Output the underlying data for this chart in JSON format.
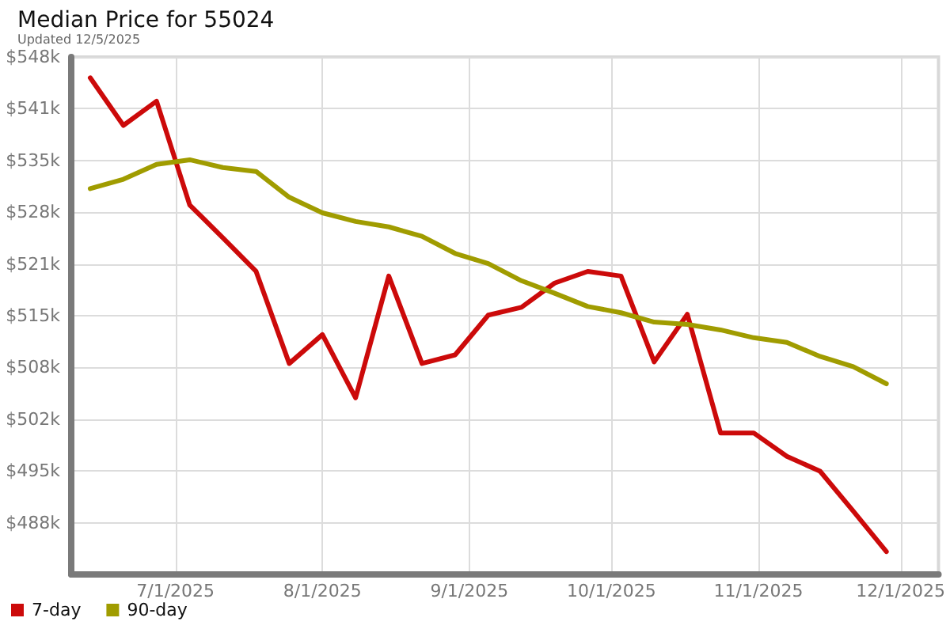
{
  "chart_data": {
    "type": "line",
    "title": "Median Price for 55024",
    "subtitle": "Updated 12/5/2025",
    "x": [
      "2025-06-13",
      "2025-06-20",
      "2025-06-27",
      "2025-07-04",
      "2025-07-11",
      "2025-07-18",
      "2025-07-25",
      "2025-08-01",
      "2025-08-08",
      "2025-08-15",
      "2025-08-22",
      "2025-08-29",
      "2025-09-05",
      "2025-09-12",
      "2025-09-19",
      "2025-09-26",
      "2025-10-03",
      "2025-10-10",
      "2025-10-17",
      "2025-10-24",
      "2025-10-31",
      "2025-11-07",
      "2025-11-14",
      "2025-11-21",
      "2025-11-28"
    ],
    "series": [
      {
        "name": "7-day",
        "color": "#cc0a0a",
        "values": [
          545.3,
          539.2,
          542.3,
          529.0,
          524.8,
          520.5,
          508.7,
          512.4,
          504.3,
          519.9,
          508.7,
          509.8,
          514.9,
          515.9,
          519.0,
          520.5,
          519.9,
          508.9,
          515.0,
          499.8,
          499.8,
          496.8,
          494.9,
          489.8,
          484.6
        ]
      },
      {
        "name": "90-day",
        "color": "#a09c00",
        "values": [
          531.1,
          532.3,
          534.2,
          534.8,
          533.8,
          533.3,
          530.0,
          528.0,
          526.9,
          526.2,
          525.0,
          522.8,
          521.5,
          519.3,
          517.7,
          516.0,
          515.2,
          514.0,
          513.7,
          513.0,
          512.0,
          511.4,
          509.6,
          508.3,
          506.1
        ]
      }
    ],
    "xlim": [
      "2025-06-09",
      "2025-12-09"
    ],
    "xticks": [
      {
        "value": "2025-07-01",
        "label": "7/1/2025"
      },
      {
        "value": "2025-08-01",
        "label": "8/1/2025"
      },
      {
        "value": "2025-09-01",
        "label": "9/1/2025"
      },
      {
        "value": "2025-10-01",
        "label": "10/1/2025"
      },
      {
        "value": "2025-11-01",
        "label": "11/1/2025"
      },
      {
        "value": "2025-12-01",
        "label": "12/1/2025"
      }
    ],
    "ylim": [
      481.67,
      547.97
    ],
    "yticks": [
      {
        "value": 488.3,
        "label": "$488k"
      },
      {
        "value": 494.93,
        "label": "$495k"
      },
      {
        "value": 501.56,
        "label": "$502k"
      },
      {
        "value": 508.19,
        "label": "$508k"
      },
      {
        "value": 514.82,
        "label": "$515k"
      },
      {
        "value": 521.45,
        "label": "$521k"
      },
      {
        "value": 528.08,
        "label": "$528k"
      },
      {
        "value": 534.71,
        "label": "$535k"
      },
      {
        "value": 541.34,
        "label": "$541k"
      },
      {
        "value": 547.97,
        "label": "$548k"
      }
    ],
    "grid": true,
    "legend": "bottom left",
    "marker": "none",
    "line_style": "solid"
  }
}
